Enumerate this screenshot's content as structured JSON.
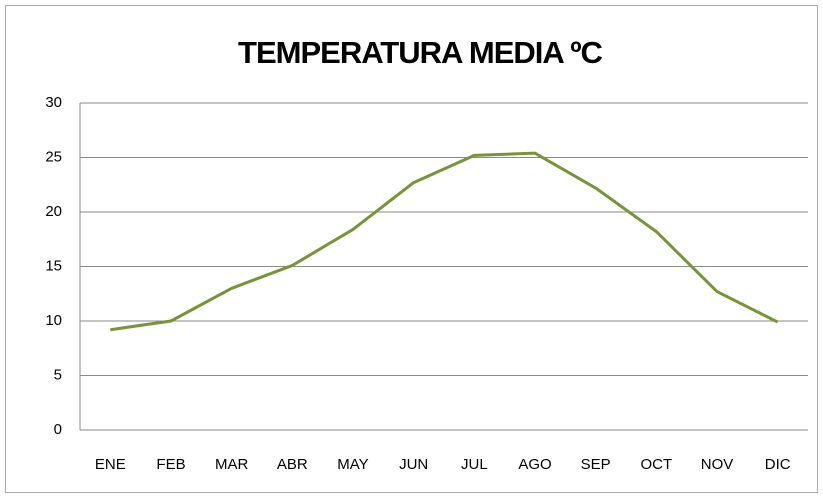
{
  "chart_data": {
    "type": "line",
    "title": "TEMPERATURA MEDIA ºC",
    "categories": [
      "ENE",
      "FEB",
      "MAR",
      "ABR",
      "MAY",
      "JUN",
      "JUL",
      "AGO",
      "SEP",
      "OCT",
      "NOV",
      "DIC"
    ],
    "values": [
      9.2,
      10,
      13,
      15.1,
      18.4,
      22.7,
      25.2,
      25.4,
      22.2,
      18.2,
      12.7,
      9.9
    ],
    "color": "#77933c",
    "ylim": [
      0,
      30
    ],
    "yticks": [
      0,
      5,
      10,
      15,
      20,
      25,
      30
    ],
    "grid": true
  }
}
